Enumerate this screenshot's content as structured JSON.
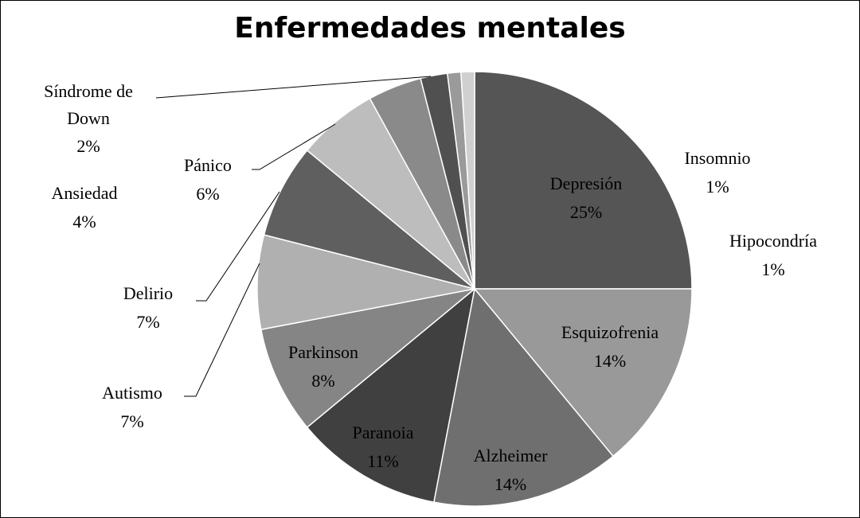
{
  "chart_data": {
    "type": "pie",
    "title": "Enfermedades mentales",
    "categories": [
      "Depresión",
      "Esquizofrenia",
      "Alzheimer",
      "Paranoia",
      "Parkinson",
      "Autismo",
      "Delirio",
      "Pánico",
      "Ansiedad",
      "Síndrome de Down",
      "Hipocondría",
      "Insomnio"
    ],
    "values": [
      25,
      14,
      14,
      11,
      8,
      7,
      7,
      6,
      4,
      2,
      1,
      1
    ],
    "value_labels": [
      "25%",
      "14%",
      "14%",
      "11%",
      "8%",
      "7%",
      "7%",
      "6%",
      "4%",
      "2%",
      "1%",
      "1%"
    ],
    "colors": [
      "#555555",
      "#999999",
      "#6f6f6f",
      "#404040",
      "#858585",
      "#b0b0b0",
      "#5f5f5f",
      "#bdbdbd",
      "#8a8a8a",
      "#505050",
      "#9a9a9a",
      "#d0d0d0"
    ]
  }
}
